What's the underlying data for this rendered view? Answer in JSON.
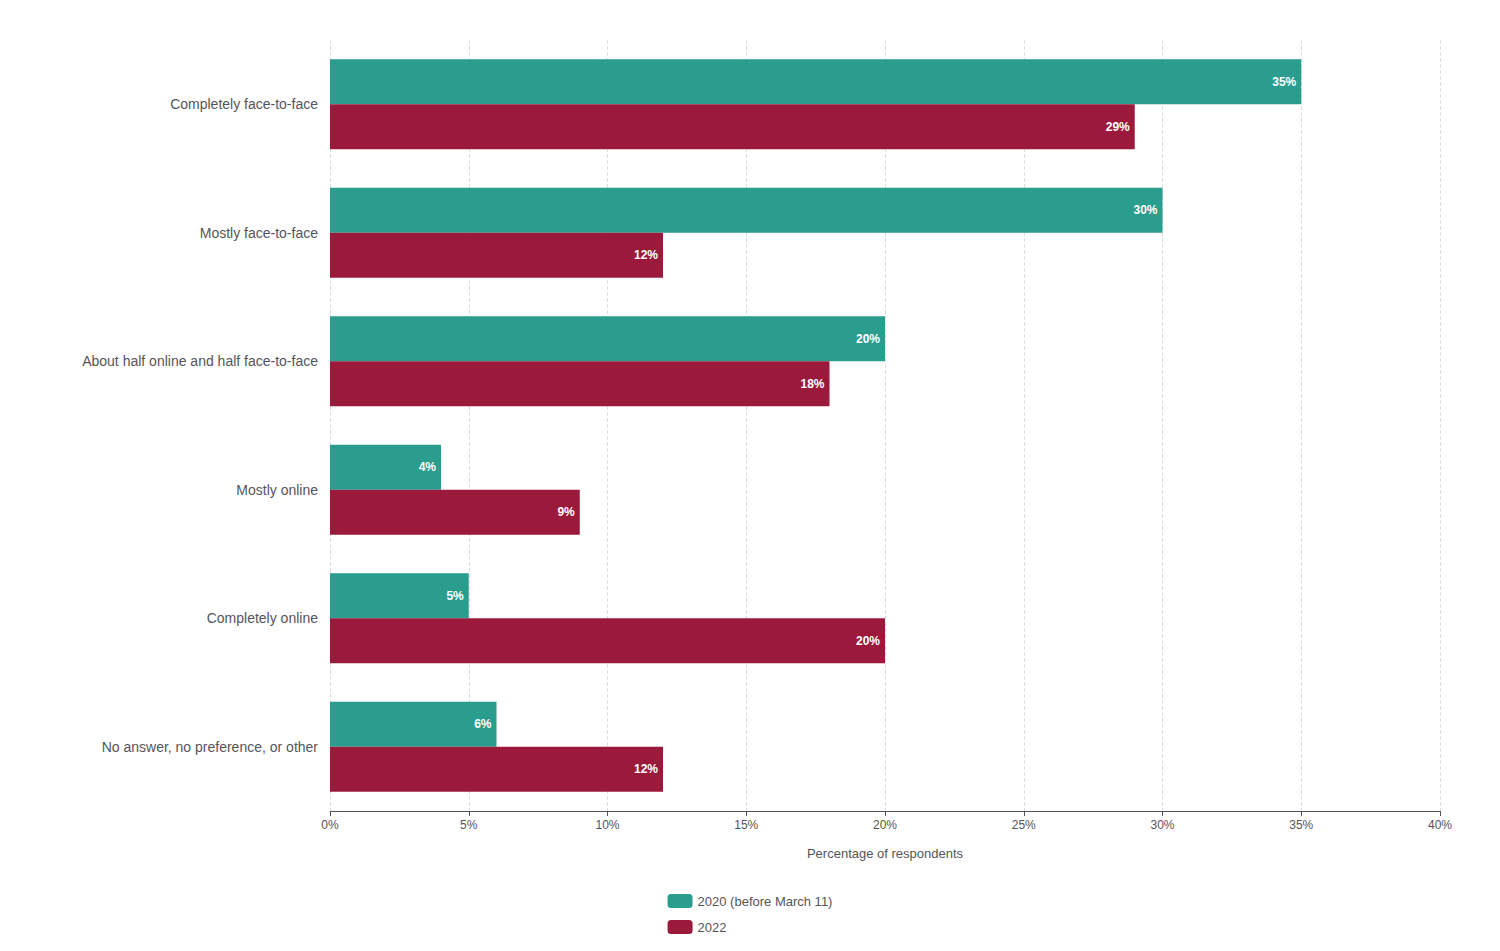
{
  "chart_data": {
    "type": "bar",
    "orientation": "horizontal",
    "categories": [
      "Completely face-to-face",
      "Mostly face-to-face",
      "About half online and half face-to-face",
      "Mostly online",
      "Completely online",
      "No answer, no preference, or other"
    ],
    "series": [
      {
        "name": "2020 (before March 11)",
        "color": "#2a9d8f",
        "values": [
          35,
          30,
          20,
          4,
          5,
          6
        ],
        "value_labels": [
          "35%",
          "30%",
          "20%",
          "4%",
          "5%",
          "6%"
        ]
      },
      {
        "name": "2022",
        "color": "#9b1a3b",
        "values": [
          29,
          12,
          18,
          9,
          20,
          12
        ],
        "value_labels": [
          "29%",
          "12%",
          "18%",
          "9%",
          "20%",
          "12%"
        ]
      }
    ],
    "xlabel": "Percentage of respondents",
    "xlim": [
      0,
      40
    ],
    "xticks": [
      {
        "value": 0,
        "label": "0%"
      },
      {
        "value": 5,
        "label": "5%"
      },
      {
        "value": 10,
        "label": "10%"
      },
      {
        "value": 15,
        "label": "15%"
      },
      {
        "value": 20,
        "label": "20%"
      },
      {
        "value": 25,
        "label": "25%"
      },
      {
        "value": 30,
        "label": "30%"
      },
      {
        "value": 35,
        "label": "35%"
      },
      {
        "value": 40,
        "label": "40%"
      }
    ],
    "grid": true,
    "legend": "bottom",
    "data_labels": true
  }
}
